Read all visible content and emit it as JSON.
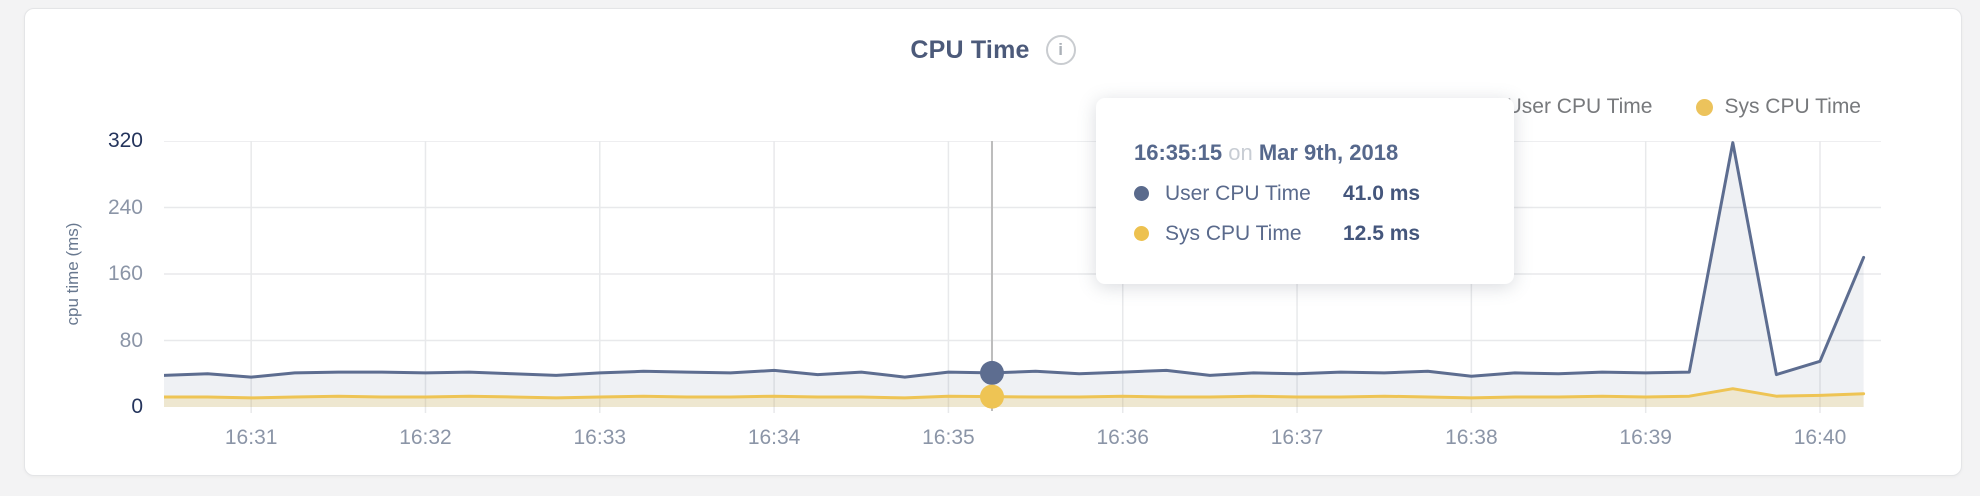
{
  "header": {
    "title": "CPU Time",
    "info_icon_glyph": "i"
  },
  "legend": [
    {
      "label": "User CPU Time",
      "color": "#5c6c8f"
    },
    {
      "label": "Sys CPU Time",
      "color": "#ecc35c"
    }
  ],
  "y_axis_label": "cpu time (ms)",
  "tooltip": {
    "time": "16:35:15",
    "connector": "on",
    "date": "Mar 9th, 2018",
    "rows": [
      {
        "label": "User CPU Time",
        "value": "41.0 ms",
        "color": "#5a6a8c"
      },
      {
        "label": "Sys CPU Time",
        "value": "12.5 ms",
        "color": "#edc14f"
      }
    ]
  },
  "chart_data": {
    "type": "area",
    "title": "CPU Time",
    "ylabel": "cpu time (ms)",
    "ylim": [
      0,
      320
    ],
    "y_ticks": [
      0,
      80,
      160,
      240,
      320
    ],
    "x_ticks": [
      "16:31",
      "16:32",
      "16:33",
      "16:34",
      "16:35",
      "16:36",
      "16:37",
      "16:38",
      "16:39",
      "16:40"
    ],
    "x_range": [
      "16:30:30",
      "16:40:21"
    ],
    "grid": true,
    "grid_color": "#e8e9eb",
    "axis_colors": {
      "major": "#24345c",
      "minor": "#8b95a7"
    },
    "legend_position": "top-right",
    "x": [
      "16:30:30",
      "16:30:45",
      "16:31:00",
      "16:31:15",
      "16:31:30",
      "16:31:45",
      "16:32:00",
      "16:32:15",
      "16:32:30",
      "16:32:45",
      "16:33:00",
      "16:33:15",
      "16:33:30",
      "16:33:45",
      "16:34:00",
      "16:34:15",
      "16:34:30",
      "16:34:45",
      "16:35:00",
      "16:35:15",
      "16:35:30",
      "16:35:45",
      "16:36:00",
      "16:36:15",
      "16:36:30",
      "16:36:45",
      "16:37:00",
      "16:37:15",
      "16:37:30",
      "16:37:45",
      "16:38:00",
      "16:38:15",
      "16:38:30",
      "16:38:45",
      "16:39:00",
      "16:39:15",
      "16:39:30",
      "16:39:45",
      "16:40:00",
      "16:40:15"
    ],
    "series": [
      {
        "name": "User CPU Time",
        "color": "#5d6d90",
        "fill": "rgba(99,114,148,0.10)",
        "values": [
          38,
          40,
          36,
          41,
          42,
          42,
          41,
          42,
          40,
          38,
          41,
          43,
          42,
          41,
          44,
          39,
          42,
          36,
          42,
          41,
          43,
          40,
          42,
          44,
          38,
          41,
          40,
          42,
          41,
          43,
          37,
          41,
          40,
          42,
          41,
          42,
          318,
          39,
          55,
          180
        ]
      },
      {
        "name": "Sys CPU Time",
        "color": "#eec454",
        "fill": "rgba(238,196,84,0.22)",
        "values": [
          12,
          12,
          11,
          12,
          13,
          12,
          12,
          13,
          12,
          11,
          12,
          13,
          12,
          12,
          13,
          12,
          12,
          11,
          13,
          12.5,
          12,
          12,
          13,
          12,
          12,
          13,
          12,
          12,
          13,
          12,
          11,
          12,
          12,
          13,
          12,
          13,
          22,
          13,
          14,
          16
        ]
      }
    ],
    "hover": {
      "x": "16:35:15",
      "crosshair_color": "#bdbdbd",
      "dot_radius": 12,
      "values": {
        "User CPU Time": 41.0,
        "Sys CPU Time": 12.5
      }
    }
  }
}
